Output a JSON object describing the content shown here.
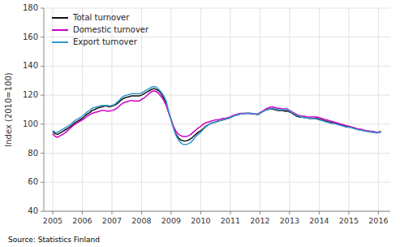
{
  "chart_data": {
    "type": "line",
    "ylabel": "Index (2010=100)",
    "source": "Source: Statistics Finland",
    "x": [
      2005.0,
      2005.0833,
      2005.1667,
      2005.25,
      2005.3333,
      2005.4167,
      2005.5,
      2005.5833,
      2005.6666,
      2005.75,
      2005.8333,
      2005.9166,
      2006.0,
      2006.0833,
      2006.1666,
      2006.25,
      2006.3333,
      2006.4166,
      2006.5,
      2006.5833,
      2006.6666,
      2006.7499,
      2006.8333,
      2006.9166,
      2006.9999,
      2007.0833,
      2007.1666,
      2007.2499,
      2007.3333,
      2007.4166,
      2007.4999,
      2007.5833,
      2007.6666,
      2007.7499,
      2007.8332,
      2007.9166,
      2007.9999,
      2008.0832,
      2008.1666,
      2008.2499,
      2008.3332,
      2008.4166,
      2008.4999,
      2008.5832,
      2008.6666,
      2008.7499,
      2008.8332,
      2008.9165,
      2008.9999,
      2009.0832,
      2009.1665,
      2009.2499,
      2009.3332,
      2009.4165,
      2009.4999,
      2009.5832,
      2009.6665,
      2009.7499,
      2009.8332,
      2009.9165,
      2009.9998,
      2010.0832,
      2010.1665,
      2010.2498,
      2010.3332,
      2010.4165,
      2010.4998,
      2010.5832,
      2010.6665,
      2010.7498,
      2010.8332,
      2010.9165,
      2010.9998,
      2011.0832,
      2011.1665,
      2011.2498,
      2011.3331,
      2011.4165,
      2011.4998,
      2011.5831,
      2011.6665,
      2011.7498,
      2011.8331,
      2011.9165,
      2011.9998,
      2012.0831,
      2012.1665,
      2012.2498,
      2012.3331,
      2012.4164,
      2012.4998,
      2012.5831,
      2012.6664,
      2012.7498,
      2012.8331,
      2012.9164,
      2012.9998,
      2013.0831,
      2013.1664,
      2013.2498,
      2013.3331,
      2013.4164,
      2013.4997,
      2013.5831,
      2013.6664,
      2013.7497,
      2013.8331,
      2013.9164,
      2013.9997,
      2014.0831,
      2014.1664,
      2014.2497,
      2014.3331,
      2014.4164,
      2014.4997,
      2014.583,
      2014.6664,
      2014.7497,
      2014.833,
      2014.9164,
      2014.9997,
      2015.083,
      2015.1664,
      2015.2497,
      2015.333,
      2015.4164,
      2015.4997,
      2015.583,
      2015.6663,
      2015.7497,
      2015.833,
      2015.9163,
      2015.9997,
      2016.083
    ],
    "xlim": [
      2004.7,
      2016.4
    ],
    "xticks": [
      2005,
      2006,
      2007,
      2008,
      2009,
      2010,
      2011,
      2012,
      2013,
      2014,
      2015,
      2016
    ],
    "ylim": [
      40,
      180
    ],
    "yticks": [
      40,
      60,
      80,
      100,
      120,
      140,
      160,
      180
    ],
    "grid": true,
    "legend": "upper left",
    "series": [
      {
        "name": "Total turnover",
        "color": "#111111",
        "values": [
          95.0,
          93.5,
          93.0,
          94.0,
          95.0,
          96.0,
          97.0,
          98.0,
          99.5,
          101.0,
          102.0,
          103.0,
          104.0,
          105.5,
          107.0,
          108.0,
          109.5,
          110.0,
          111.0,
          111.5,
          112.0,
          112.5,
          112.5,
          112.0,
          112.5,
          113.0,
          114.0,
          115.5,
          117.0,
          118.0,
          118.5,
          119.0,
          119.5,
          119.5,
          119.5,
          119.5,
          120.0,
          121.0,
          122.0,
          123.0,
          124.0,
          124.5,
          124.0,
          123.0,
          121.0,
          118.0,
          114.0,
          108.0,
          103.0,
          97.5,
          93.0,
          90.5,
          89.0,
          88.5,
          88.5,
          89.0,
          90.0,
          91.5,
          93.0,
          94.5,
          95.5,
          97.0,
          98.5,
          99.5,
          100.5,
          101.0,
          101.5,
          102.0,
          102.5,
          103.0,
          103.5,
          104.0,
          104.5,
          105.5,
          106.0,
          106.5,
          107.0,
          107.0,
          107.5,
          107.5,
          107.5,
          107.0,
          107.0,
          106.5,
          107.5,
          108.5,
          109.5,
          110.0,
          110.5,
          110.5,
          110.0,
          109.5,
          109.5,
          109.5,
          109.0,
          109.0,
          108.5,
          107.5,
          106.5,
          105.5,
          105.0,
          105.0,
          104.5,
          104.5,
          104.0,
          104.0,
          104.0,
          104.0,
          103.5,
          103.0,
          102.5,
          102.0,
          101.5,
          101.0,
          101.0,
          100.5,
          100.0,
          99.5,
          99.0,
          98.5,
          98.5,
          98.0,
          97.5,
          97.0,
          96.5,
          96.0,
          95.5,
          95.5,
          95.0,
          95.0,
          94.5,
          94.5,
          94.5,
          95.0
        ]
      },
      {
        "name": "Domestic turnover",
        "color": "#cc00cc",
        "values": [
          93.5,
          91.5,
          91.0,
          92.0,
          93.0,
          94.0,
          95.5,
          97.0,
          98.5,
          100.0,
          101.0,
          102.0,
          103.0,
          104.0,
          105.5,
          106.5,
          107.5,
          108.0,
          108.5,
          109.0,
          109.5,
          109.5,
          109.0,
          109.0,
          109.5,
          110.0,
          111.0,
          112.5,
          114.0,
          115.0,
          115.5,
          116.0,
          116.5,
          116.0,
          116.0,
          116.0,
          117.0,
          118.0,
          119.5,
          121.0,
          122.5,
          123.0,
          122.5,
          121.0,
          119.0,
          116.5,
          113.0,
          108.0,
          103.0,
          98.5,
          95.0,
          93.0,
          92.0,
          91.5,
          91.5,
          92.0,
          93.0,
          94.5,
          96.0,
          97.5,
          98.5,
          100.0,
          101.0,
          101.5,
          102.0,
          102.5,
          103.0,
          103.0,
          103.5,
          104.0,
          104.0,
          104.5,
          105.0,
          106.0,
          106.5,
          107.0,
          107.5,
          107.5,
          107.5,
          107.5,
          107.5,
          107.0,
          107.0,
          107.0,
          108.0,
          109.0,
          110.0,
          111.0,
          111.5,
          112.0,
          111.5,
          111.0,
          111.0,
          110.5,
          110.5,
          110.5,
          109.5,
          108.5,
          107.5,
          106.5,
          106.0,
          105.5,
          105.5,
          105.0,
          105.0,
          105.0,
          105.0,
          105.0,
          104.5,
          104.0,
          103.5,
          103.0,
          102.5,
          102.0,
          101.5,
          101.0,
          100.5,
          100.0,
          99.5,
          99.0,
          98.5,
          98.0,
          97.5,
          97.0,
          96.5,
          96.5,
          96.0,
          95.5,
          95.5,
          95.0,
          95.0,
          94.5,
          94.5,
          94.5
        ]
      },
      {
        "name": "Export turnover",
        "color": "#3399cc",
        "values": [
          95.5,
          94.5,
          94.5,
          95.5,
          96.5,
          97.5,
          98.5,
          99.5,
          101.0,
          102.5,
          103.5,
          104.5,
          105.5,
          107.0,
          108.5,
          109.5,
          111.0,
          111.5,
          112.0,
          112.5,
          113.0,
          113.0,
          113.0,
          112.5,
          113.0,
          113.5,
          115.0,
          116.5,
          118.5,
          119.5,
          120.0,
          120.5,
          121.0,
          121.0,
          121.0,
          121.0,
          121.5,
          122.5,
          123.5,
          124.5,
          125.5,
          126.0,
          125.5,
          124.0,
          122.0,
          119.5,
          116.0,
          109.0,
          102.5,
          97.0,
          92.0,
          89.0,
          87.0,
          86.0,
          86.0,
          86.5,
          87.5,
          89.5,
          91.5,
          93.0,
          94.5,
          96.5,
          98.0,
          99.5,
          100.5,
          101.0,
          101.5,
          102.0,
          102.5,
          103.0,
          103.5,
          104.0,
          104.5,
          105.5,
          106.0,
          106.5,
          107.0,
          107.0,
          107.5,
          107.5,
          107.5,
          107.5,
          107.0,
          106.5,
          107.5,
          108.5,
          109.5,
          110.0,
          110.5,
          111.0,
          110.5,
          110.0,
          110.0,
          110.0,
          110.0,
          110.0,
          109.0,
          108.0,
          107.0,
          106.0,
          105.5,
          105.0,
          104.5,
          104.5,
          104.0,
          104.0,
          104.0,
          103.5,
          103.0,
          102.5,
          102.0,
          101.5,
          101.0,
          100.5,
          100.5,
          100.0,
          99.5,
          99.0,
          98.5,
          98.0,
          98.0,
          97.5,
          97.0,
          96.5,
          96.0,
          96.0,
          95.5,
          95.0,
          95.0,
          94.5,
          94.5,
          94.0,
          94.0,
          95.0
        ]
      }
    ]
  }
}
